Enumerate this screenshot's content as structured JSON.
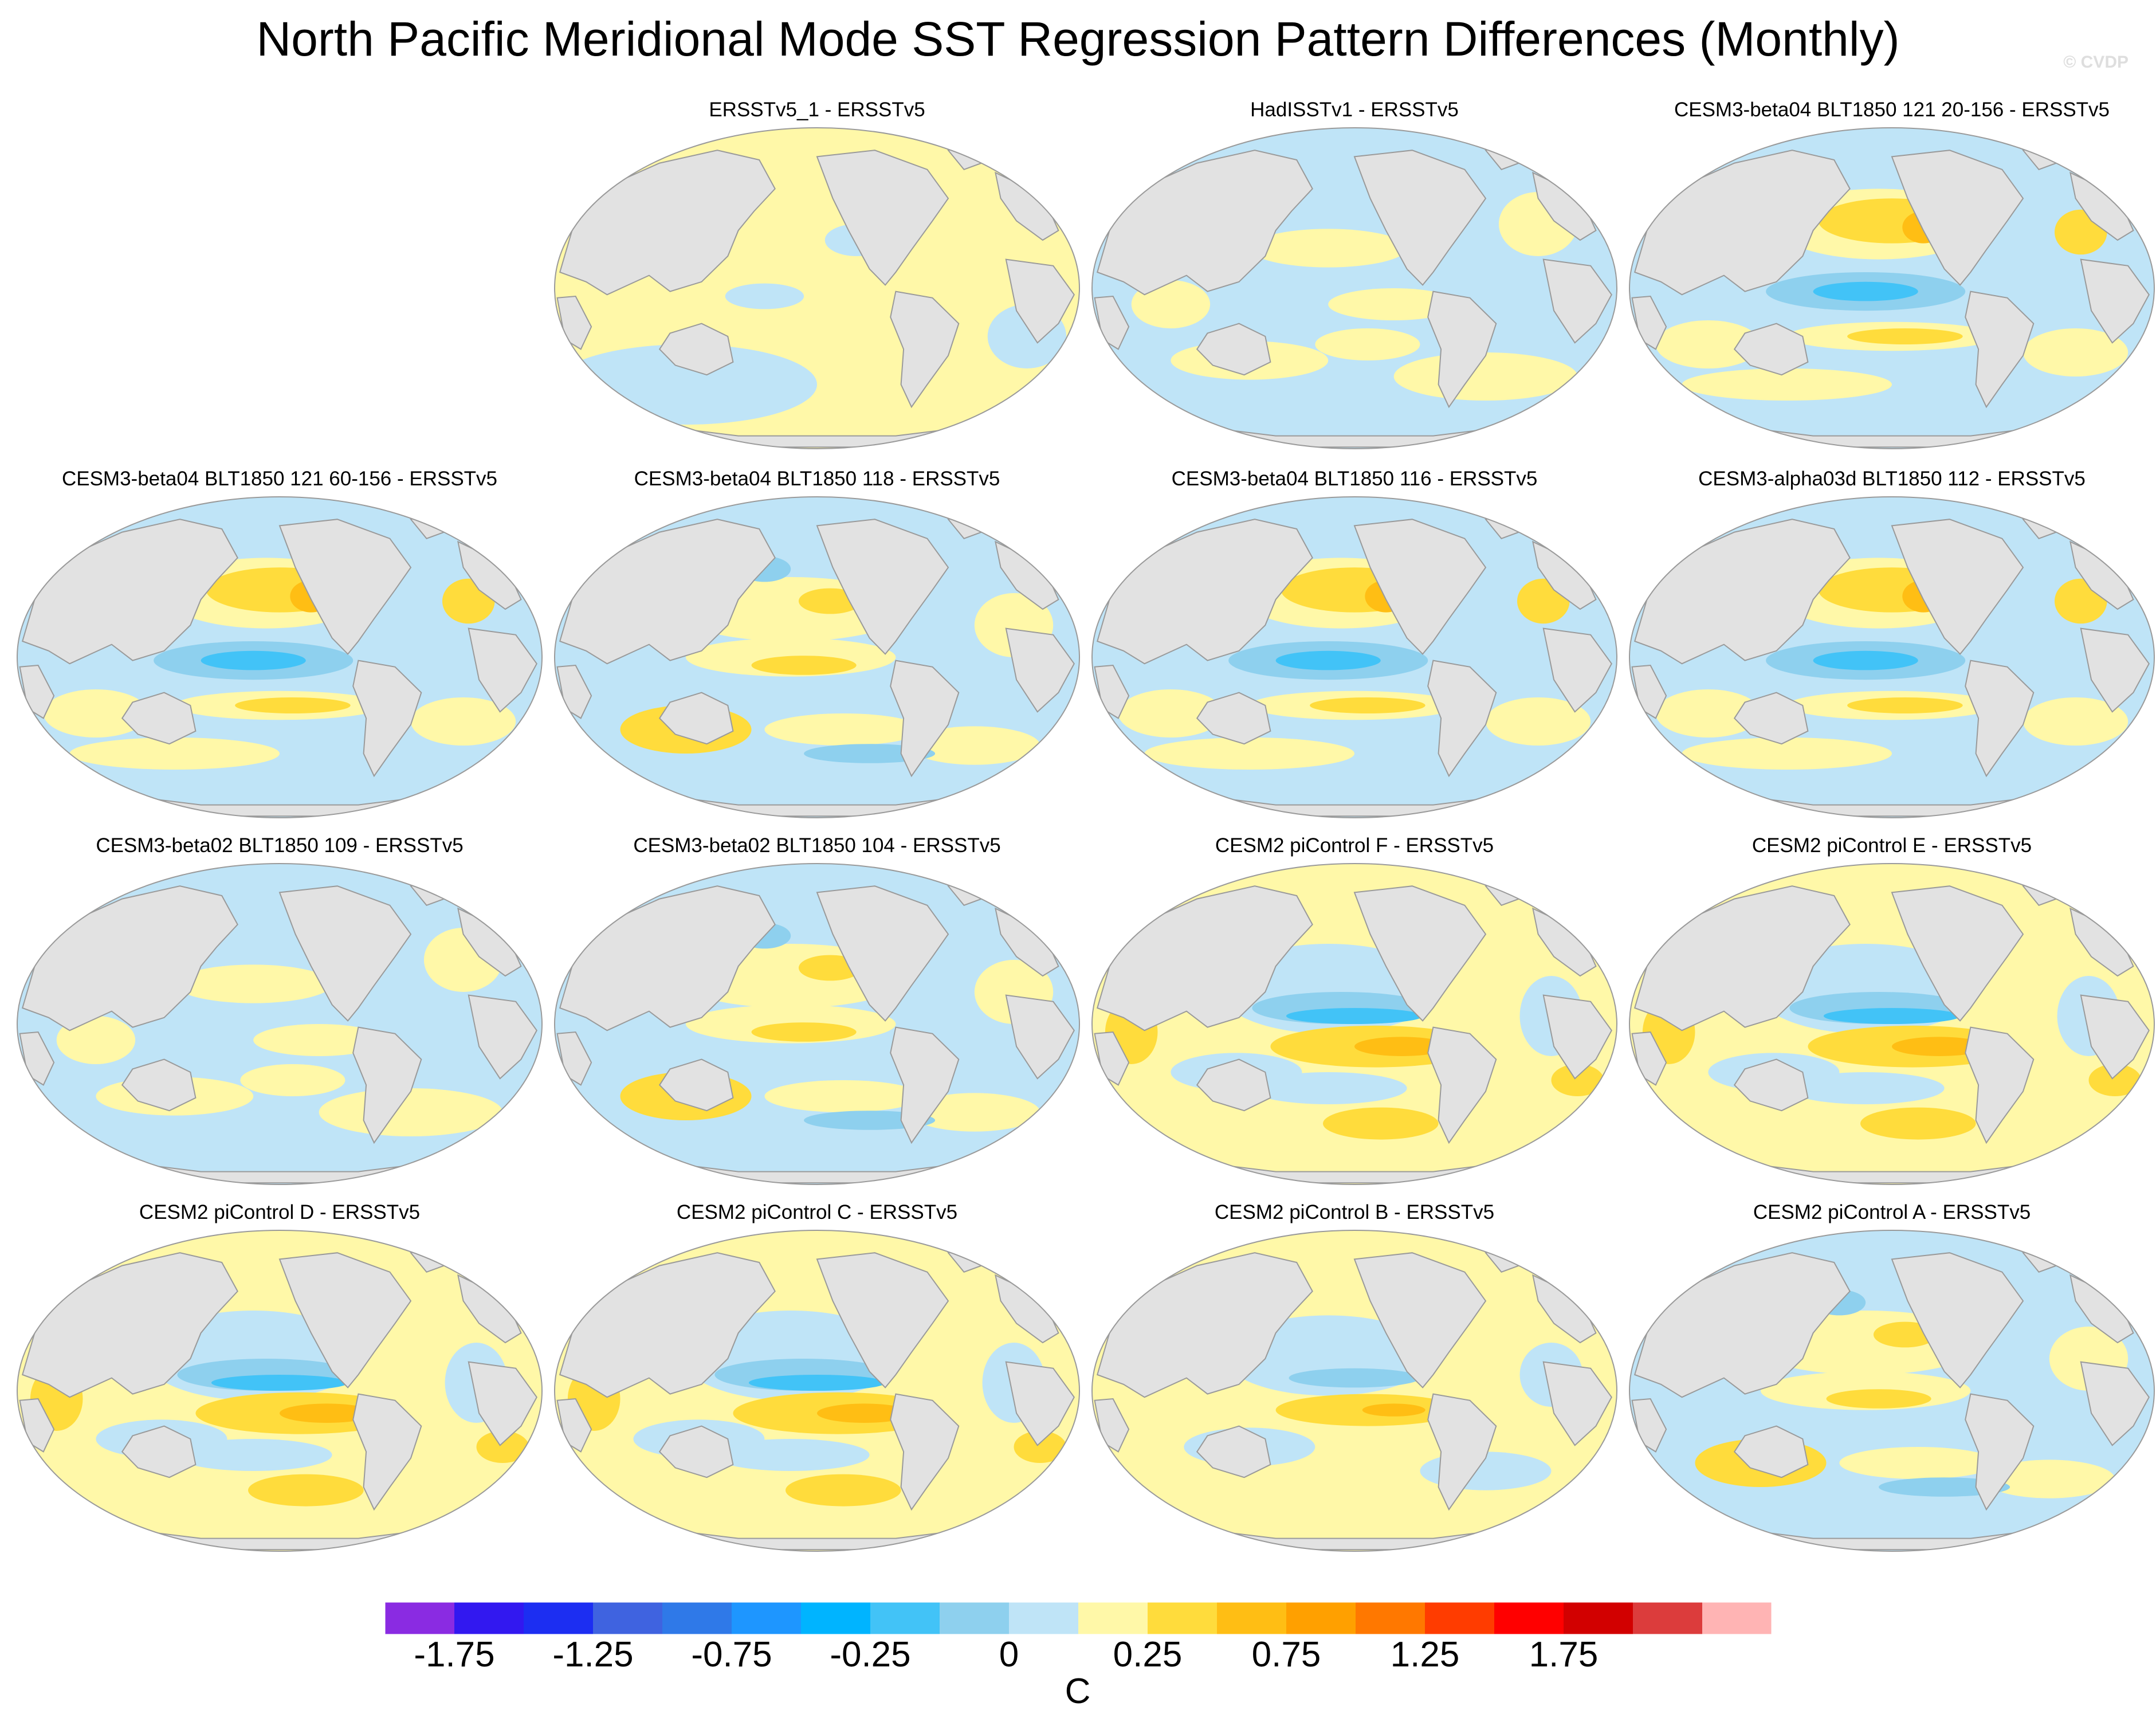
{
  "title": "North Pacific Meridional Mode SST Regression Pattern Differences (Monthly)",
  "credit": "© CVDP",
  "panels": [
    {
      "title": "ERSSTv5_1 - ERSSTv5",
      "pattern": "pos-uniform"
    },
    {
      "title": "HadISSTv1 - ERSSTv5",
      "pattern": "mixed-neutral"
    },
    {
      "title": "CESM3-beta04 BLT1850 121 20-156 - ERSSTv5",
      "pattern": "neg-tropics"
    },
    {
      "title": "CESM3-beta04 BLT1850 121 60-156 - ERSSTv5",
      "pattern": "neg-tropics"
    },
    {
      "title": "CESM3-beta04 BLT1850 118 - ERSSTv5",
      "pattern": "mixed-pos"
    },
    {
      "title": "CESM3-beta04 BLT1850 116 - ERSSTv5",
      "pattern": "neg-tropics"
    },
    {
      "title": "CESM3-alpha03d BLT1850 112 - ERSSTv5",
      "pattern": "neg-tropics"
    },
    {
      "title": "CESM3-beta02 BLT1850 109 - ERSSTv5",
      "pattern": "mixed-neutral"
    },
    {
      "title": "CESM3-beta02 BLT1850 104 - ERSSTv5",
      "pattern": "mixed-pos"
    },
    {
      "title": "CESM2 piControl F - ERSSTv5",
      "pattern": "dipole"
    },
    {
      "title": "CESM2 piControl E - ERSSTv5",
      "pattern": "dipole"
    },
    {
      "title": "CESM2 piControl D - ERSSTv5",
      "pattern": "dipole"
    },
    {
      "title": "CESM2 piControl C - ERSSTv5",
      "pattern": "dipole"
    },
    {
      "title": "CESM2 piControl B - ERSSTv5",
      "pattern": "dipole-weak"
    },
    {
      "title": "CESM2 piControl A - ERSSTv5",
      "pattern": "mixed-pos"
    }
  ],
  "colorbar": {
    "unit": "C",
    "colors": [
      "#8a2be2",
      "#3218f0",
      "#1c2ef2",
      "#3f63e0",
      "#2f79e8",
      "#1e96ff",
      "#00b4ff",
      "#42c3f7",
      "#8ed0ee",
      "#bfe4f7",
      "#fff8a8",
      "#ffdc3c",
      "#ffbe14",
      "#ffa000",
      "#ff7800",
      "#ff3c00",
      "#ff0000",
      "#d20000",
      "#dc3c3c",
      "#ffb4b4"
    ],
    "tick_labels": [
      "-1.75",
      "-1.25",
      "-0.75",
      "-0.25",
      "0",
      "0.25",
      "0.75",
      "1.25",
      "1.75"
    ]
  },
  "palette": {
    "land": "#e2e2e2",
    "coast": "#9a9a9a",
    "neg1": "#bfe4f7",
    "neg2": "#8ed0ee",
    "neg3": "#42c3f7",
    "pos1": "#fff8a8",
    "pos2": "#ffdc3c",
    "pos3": "#ffbe14"
  }
}
